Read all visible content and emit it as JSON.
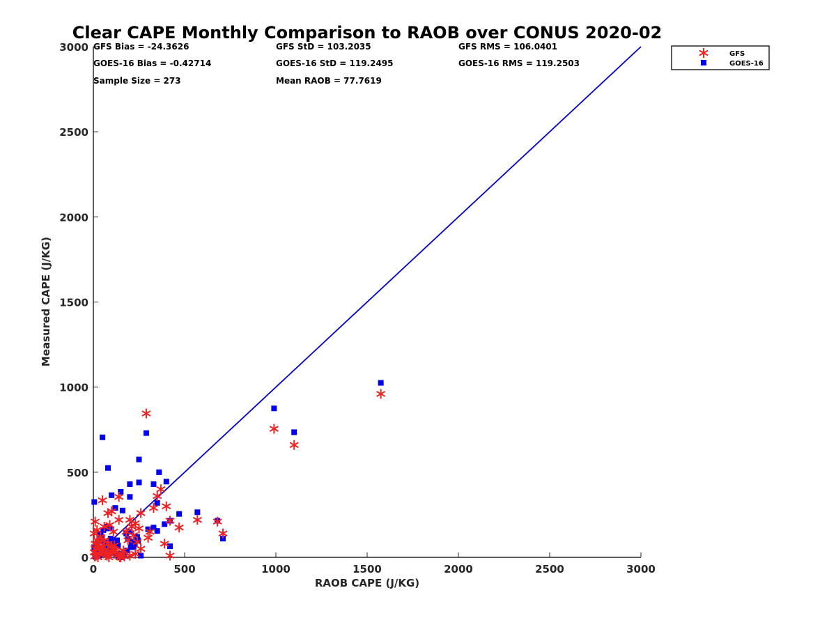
{
  "chart_data": {
    "type": "scatter",
    "title": "Clear CAPE Monthly Comparison to RAOB over CONUS 2020-02",
    "xlabel": "RAOB CAPE (J/KG)",
    "ylabel": "Measured CAPE (J/KG)",
    "xlim": [
      0,
      3000
    ],
    "ylim": [
      0,
      3000
    ],
    "xticks": [
      0,
      500,
      1000,
      1500,
      2000,
      2500,
      3000
    ],
    "yticks": [
      0,
      500,
      1000,
      1500,
      2000,
      2500,
      3000
    ],
    "grid": false,
    "legend_position": "top-right",
    "stats": [
      "GFS Bias = -24.3626",
      "GFS StD = 103.2035",
      "GFS RMS = 106.0401",
      "GOES-16 Bias = -0.42714",
      "GOES-16 StD = 119.2495",
      "GOES-16 RMS = 119.2503",
      "Sample Size = 273",
      "Mean RAOB = 77.7619"
    ],
    "reference_line": {
      "x": [
        0,
        3000
      ],
      "y": [
        0,
        3000
      ],
      "color": "#0000cc"
    },
    "series": [
      {
        "name": "GFS",
        "marker": "asterisk",
        "color": "#ee2222",
        "x": [
          290,
          370,
          350,
          330,
          300,
          400,
          420,
          470,
          570,
          680,
          710,
          390,
          420,
          990,
          1100,
          1575,
          140,
          50,
          10,
          20,
          60,
          80,
          100,
          90,
          110,
          140,
          180,
          200,
          210,
          230,
          250,
          260,
          230,
          200,
          170,
          150,
          120,
          100,
          80,
          60,
          40,
          30,
          20,
          10,
          5,
          15,
          25,
          35,
          45,
          55,
          65,
          75,
          85,
          95,
          105,
          115,
          125,
          135,
          145,
          155,
          165,
          190,
          220,
          240,
          260,
          310,
          20,
          40,
          10,
          30,
          50,
          70,
          5,
          8
        ],
        "y": [
          845,
          400,
          360,
          290,
          115,
          300,
          215,
          175,
          220,
          210,
          140,
          80,
          10,
          755,
          660,
          960,
          355,
          335,
          210,
          160,
          180,
          260,
          270,
          190,
          150,
          220,
          150,
          220,
          180,
          200,
          170,
          260,
          20,
          10,
          5,
          0,
          40,
          60,
          80,
          100,
          120,
          90,
          70,
          50,
          30,
          10,
          0,
          20,
          40,
          60,
          30,
          10,
          0,
          20,
          50,
          70,
          30,
          10,
          0,
          20,
          40,
          100,
          130,
          90,
          50,
          150,
          100,
          120,
          80,
          60,
          40,
          20,
          140,
          5
        ]
      },
      {
        "name": "GOES-16",
        "marker": "square",
        "color": "#0000ee",
        "x": [
          50,
          80,
          100,
          150,
          200,
          250,
          290,
          330,
          360,
          400,
          250,
          200,
          160,
          120,
          90,
          70,
          5,
          350,
          420,
          470,
          570,
          680,
          710,
          390,
          990,
          1100,
          1575,
          300,
          350,
          420,
          330,
          210,
          150,
          100,
          60,
          30,
          10,
          20,
          40,
          80,
          110,
          140,
          170,
          190,
          220,
          240,
          260,
          200,
          180,
          130,
          90,
          70,
          50,
          30,
          15,
          5,
          25,
          45,
          65,
          85,
          105,
          125,
          145,
          165,
          185,
          205,
          225,
          245,
          10,
          35,
          55,
          75,
          95,
          115,
          135
        ],
        "y": [
          705,
          525,
          365,
          385,
          430,
          575,
          730,
          430,
          500,
          445,
          440,
          355,
          275,
          290,
          170,
          170,
          325,
          320,
          215,
          255,
          265,
          215,
          110,
          195,
          875,
          735,
          1025,
          165,
          155,
          65,
          175,
          90,
          10,
          40,
          90,
          50,
          20,
          80,
          130,
          60,
          30,
          20,
          10,
          110,
          60,
          120,
          10,
          150,
          140,
          100,
          70,
          40,
          20,
          10,
          30,
          60,
          90,
          110,
          80,
          50,
          30,
          10,
          0,
          20,
          40,
          60,
          80,
          100,
          5,
          140,
          160,
          180,
          110,
          90,
          70
        ]
      }
    ]
  }
}
